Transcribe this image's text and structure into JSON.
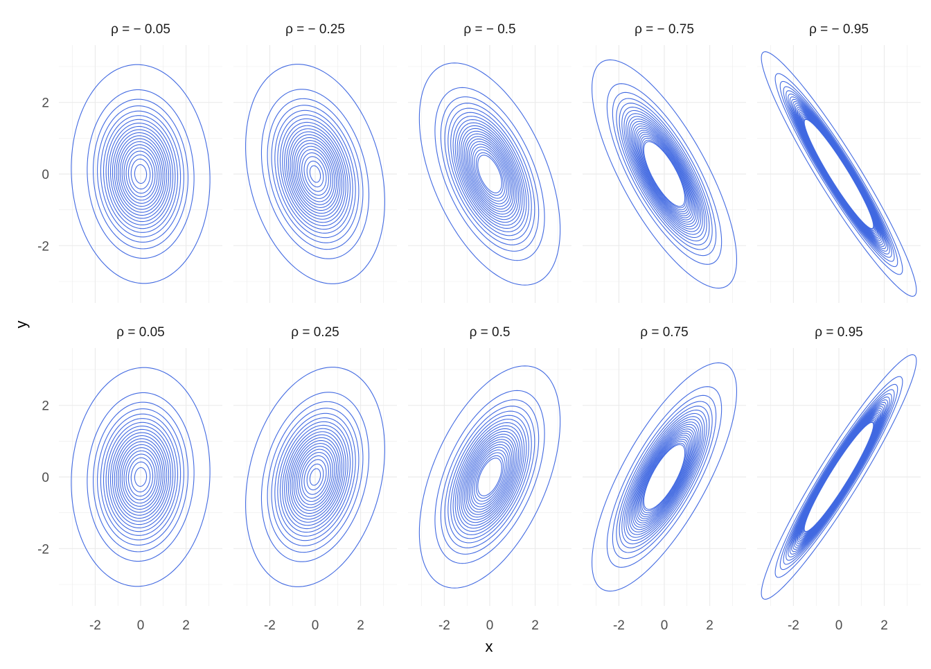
{
  "chart_data": {
    "type": "contour",
    "title": "",
    "xlabel": "x",
    "ylabel": "y",
    "xlim": [
      -3.6,
      3.6
    ],
    "ylim": [
      -3.6,
      3.6
    ],
    "x_ticks": [
      "-2",
      "0",
      "2"
    ],
    "y_ticks": [
      "-2",
      "0",
      "2"
    ],
    "grid": true,
    "facet_layout": {
      "rows": 2,
      "cols": 5
    },
    "contour_color": "#4169E1",
    "grid_color": "#EBEBEB",
    "contour_levels": [
      0.0015,
      0.01,
      0.018,
      0.026,
      0.034,
      0.042,
      0.05,
      0.058,
      0.066,
      0.074,
      0.082,
      0.09,
      0.098,
      0.106,
      0.114,
      0.122,
      0.13,
      0.138,
      0.146,
      0.154,
      0.16
    ],
    "panels": [
      {
        "label": "ρ = − 0.05",
        "rho": -0.05
      },
      {
        "label": "ρ = − 0.25",
        "rho": -0.25
      },
      {
        "label": "ρ = − 0.5",
        "rho": -0.5
      },
      {
        "label": "ρ = − 0.75",
        "rho": -0.75
      },
      {
        "label": "ρ = − 0.95",
        "rho": -0.95
      },
      {
        "label": "ρ = 0.05",
        "rho": 0.05
      },
      {
        "label": "ρ = 0.25",
        "rho": 0.25
      },
      {
        "label": "ρ = 0.5",
        "rho": 0.5
      },
      {
        "label": "ρ = 0.75",
        "rho": 0.75
      },
      {
        "label": "ρ = 0.95",
        "rho": 0.95
      }
    ]
  }
}
